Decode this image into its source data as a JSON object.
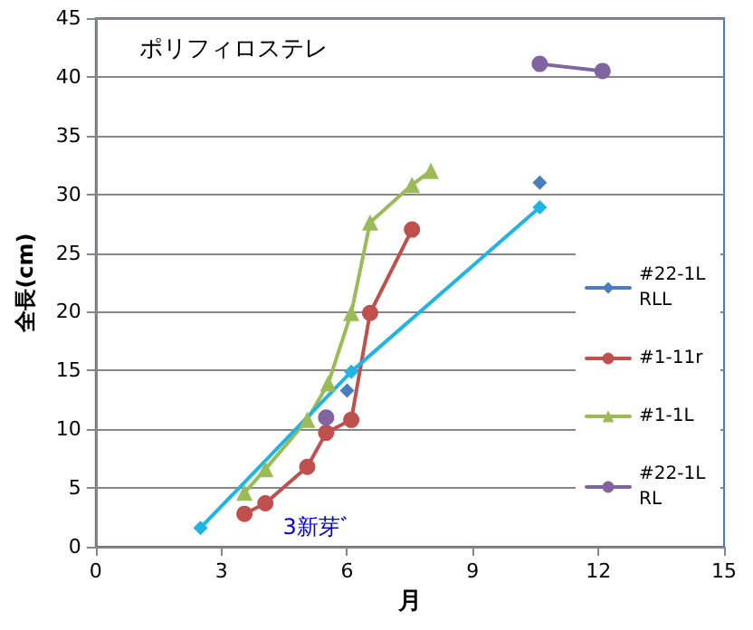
{
  "chart_data": {
    "type": "line",
    "title": "ポリフィロステレ",
    "xlabel": "月",
    "ylabel": "全長(cm)",
    "xlim": [
      0,
      15
    ],
    "xticks": [
      0,
      3,
      6,
      9,
      12,
      15
    ],
    "ylim": [
      0,
      45
    ],
    "yticks": [
      0,
      5,
      10,
      15,
      20,
      25,
      30,
      35,
      40,
      45
    ],
    "grid": "y",
    "legend": "right",
    "annotations": [
      "3新芽ﾞ"
    ],
    "series": [
      {
        "name": "#22-1LRLL",
        "color": "#4a7ebb",
        "marker": "diamond",
        "x": [
          6.0,
          null,
          10.6
        ],
        "values": [
          13.3,
          null,
          31.0
        ]
      },
      {
        "name": "#1-11r",
        "color": "#c0504d",
        "marker": "circle",
        "x": [
          3.55,
          4.05,
          5.05,
          5.5,
          6.1,
          6.55,
          7.55
        ],
        "values": [
          2.8,
          3.7,
          6.8,
          9.7,
          10.8,
          19.9,
          27.0
        ]
      },
      {
        "name": "#1-1L",
        "color": "#9bbb59",
        "marker": "triangle",
        "x": [
          3.55,
          4.05,
          5.05,
          5.55,
          6.1,
          6.55,
          7.55,
          8.0
        ],
        "values": [
          4.6,
          6.6,
          10.8,
          13.9,
          19.9,
          27.6,
          30.8,
          32.0
        ]
      },
      {
        "name": "#22-1LRL",
        "color": "#8064a2",
        "marker": "circle",
        "x": [
          5.5,
          null,
          10.6,
          12.1
        ],
        "values": [
          11.0,
          null,
          41.1,
          40.5
        ]
      },
      {
        "color": "#1fb4e4",
        "marker": "diamond",
        "x": [
          2.5,
          6.1,
          10.6
        ],
        "values": [
          1.6,
          14.9,
          28.9
        ]
      }
    ]
  }
}
